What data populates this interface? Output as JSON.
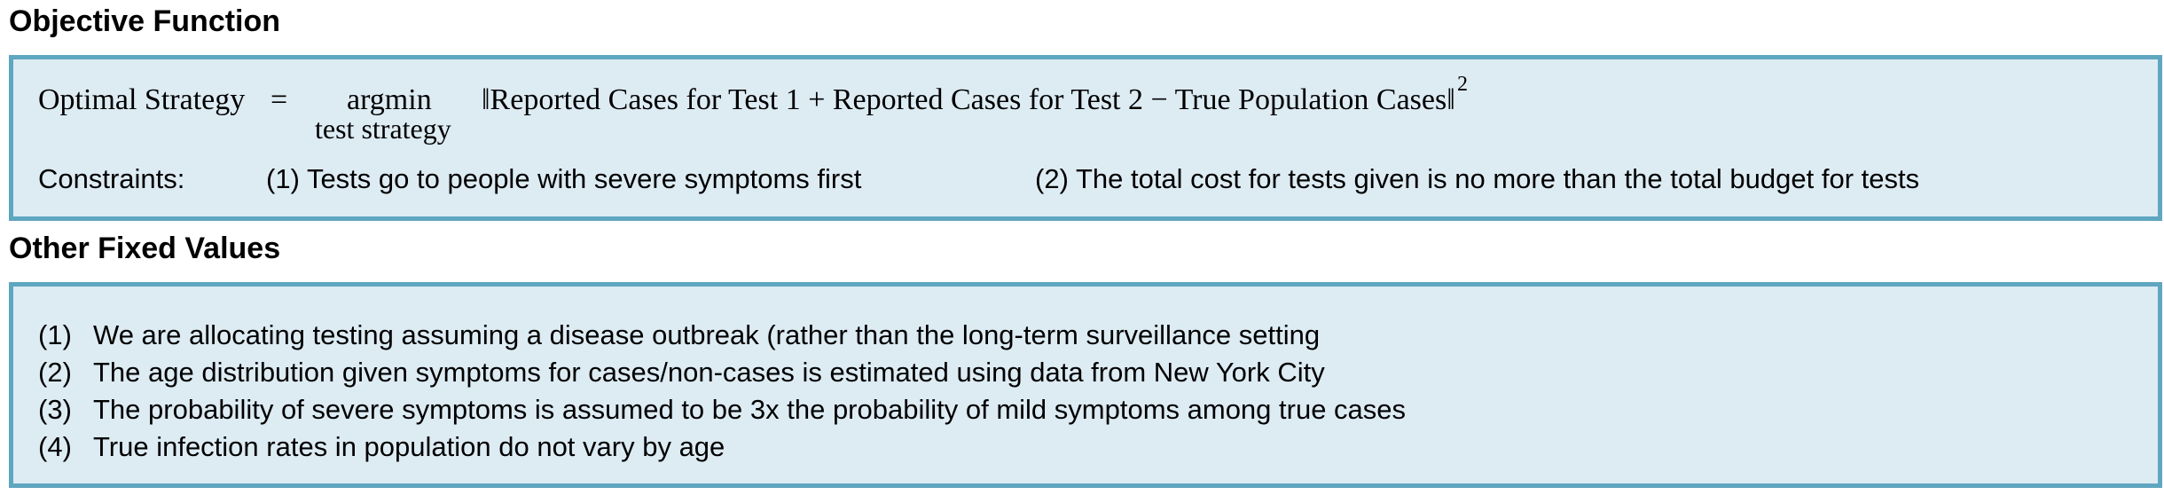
{
  "objective": {
    "title": "Objective Function",
    "equation": {
      "lhs": "Optimal Strategy",
      "equals": "=",
      "operator": "argmin",
      "operator_subscript": "test strategy",
      "rhs": "‖Reported Cases for Test 1 + Reported Cases for Test 2 − True Population Cases‖",
      "exponent": "2"
    },
    "constraints": {
      "label": "Constraints:",
      "items": [
        "(1) Tests go to people with severe symptoms first",
        "(2) The total cost for tests given is no more than the total budget for tests"
      ]
    }
  },
  "fixed_values": {
    "title": "Other Fixed Values",
    "items": [
      {
        "num": "(1)",
        "text": "We are allocating testing assuming a disease outbreak (rather than the long-term surveillance setting"
      },
      {
        "num": "(2)",
        "text": "The age distribution given symptoms for cases/non-cases is estimated using data from New York City"
      },
      {
        "num": "(3)",
        "text": "The probability of severe symptoms is assumed to be 3x the probability of mild symptoms among true cases"
      },
      {
        "num": "(4)",
        "text": "True infection rates in population do not vary by age"
      }
    ]
  },
  "colors": {
    "panel_border": "#5fa6c0",
    "panel_fill": "#ddebf3"
  }
}
